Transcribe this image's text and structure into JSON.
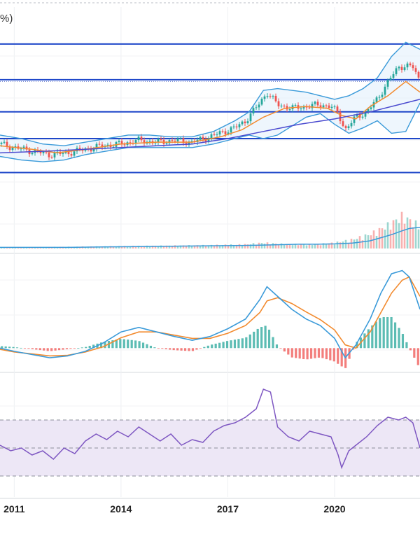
{
  "header": {
    "text": "%)"
  },
  "colors": {
    "up": "#26a69a",
    "down": "#ef5350",
    "hline": "#1f47c9",
    "bb": "#3a9ad9",
    "ma_fast": "#f28a2e",
    "ma_slow": "#4a4acf",
    "rsi": "#7e57c2",
    "rsi_band": "#ede7f6"
  },
  "chart_data": [
    {
      "type": "line",
      "panel": "price",
      "title": "",
      "x_tick_labels": [
        "2011",
        "2014",
        "2017",
        "2020"
      ],
      "x_ticks": [
        2011,
        2014,
        2017,
        2020
      ],
      "xlim": [
        2010.6,
        2022.4
      ],
      "ylim": [
        0,
        100
      ],
      "y_tick_labels": [],
      "horizontal_lines": [
        93,
        73,
        55,
        40,
        21
      ],
      "series": [
        {
          "kind": "price_close",
          "x": [
            2010.6,
            2011.0,
            2011.5,
            2012.0,
            2012.5,
            2013.0,
            2013.5,
            2014.0,
            2014.5,
            2015.0,
            2015.5,
            2016.0,
            2016.5,
            2016.9,
            2017.2,
            2017.5,
            2017.9,
            2018.1,
            2018.4,
            2018.8,
            2019.2,
            2019.6,
            2019.9,
            2020.1,
            2020.3,
            2020.6,
            2020.9,
            2021.2,
            2021.5,
            2021.8,
            2022.0,
            2022.2,
            2022.4
          ],
          "values": [
            37,
            35,
            33,
            31,
            32,
            34,
            36,
            37,
            39,
            38,
            39,
            38,
            41,
            44,
            46,
            50,
            60,
            66,
            59,
            57,
            58,
            59,
            58,
            54,
            45,
            52,
            55,
            62,
            72,
            80,
            81,
            80,
            72
          ]
        },
        {
          "kind": "bollinger_upper",
          "x": [
            2010.6,
            2011.2,
            2011.8,
            2012.4,
            2013.0,
            2013.6,
            2014.2,
            2014.8,
            2015.4,
            2016.0,
            2016.6,
            2017.2,
            2017.6,
            2018.0,
            2018.4,
            2018.8,
            2019.2,
            2019.6,
            2020.0,
            2020.4,
            2020.8,
            2021.2,
            2021.6,
            2022.0,
            2022.4
          ],
          "values": [
            42,
            40,
            37,
            36,
            38,
            40,
            42,
            42,
            41,
            41,
            44,
            50,
            55,
            67,
            68,
            67,
            66,
            64,
            62,
            64,
            68,
            74,
            86,
            94,
            90
          ]
        },
        {
          "kind": "bollinger_lower",
          "x": [
            2010.6,
            2011.2,
            2011.8,
            2012.4,
            2013.0,
            2013.6,
            2014.2,
            2014.8,
            2015.4,
            2016.0,
            2016.6,
            2017.2,
            2017.6,
            2018.0,
            2018.4,
            2018.8,
            2019.2,
            2019.6,
            2020.0,
            2020.4,
            2020.8,
            2021.2,
            2021.6,
            2022.0,
            2022.4
          ],
          "values": [
            30,
            28,
            27,
            28,
            31,
            33,
            35,
            35,
            35,
            35,
            37,
            40,
            42,
            40,
            42,
            47,
            52,
            54,
            48,
            43,
            46,
            50,
            43,
            44,
            60
          ]
        },
        {
          "kind": "ma_fast",
          "x": [
            2010.6,
            2011.5,
            2012.2,
            2013.0,
            2014.0,
            2015.0,
            2016.0,
            2016.8,
            2017.4,
            2018.0,
            2018.6,
            2019.2,
            2019.8,
            2020.2,
            2020.6,
            2021.0,
            2021.5,
            2022.0,
            2022.4
          ],
          "values": [
            36,
            34,
            32,
            34,
            37,
            38,
            38,
            41,
            45,
            52,
            57,
            58,
            57,
            53,
            51,
            58,
            64,
            72,
            66
          ]
        },
        {
          "kind": "ma_slow",
          "x": [
            2010.6,
            2012.0,
            2013.0,
            2014.0,
            2015.0,
            2016.0,
            2017.0,
            2018.0,
            2019.0,
            2020.0,
            2021.0,
            2022.0,
            2022.4
          ],
          "values": [
            32,
            33,
            34,
            35,
            36,
            37,
            40,
            44,
            48,
            51,
            55,
            60,
            62
          ]
        }
      ]
    },
    {
      "type": "bar",
      "panel": "volume",
      "title": "",
      "note": "volume bars with moving average",
      "x": [
        2010.6,
        2011.5,
        2012.5,
        2013.5,
        2014.5,
        2015.5,
        2016.5,
        2017.5,
        2018.0,
        2018.5,
        2019.0,
        2019.5,
        2020.0,
        2020.5,
        2021.0,
        2021.3,
        2021.6,
        2021.9,
        2022.1,
        2022.4
      ],
      "values": [
        3,
        3,
        4,
        5,
        6,
        7,
        8,
        10,
        14,
        11,
        10,
        10,
        14,
        22,
        35,
        48,
        62,
        80,
        70,
        55
      ],
      "ma": [
        3,
        3,
        3,
        4,
        5,
        6,
        7,
        8,
        9,
        10,
        11,
        11,
        12,
        14,
        20,
        28,
        36,
        46,
        52,
        55
      ],
      "ylim": [
        0,
        100
      ]
    },
    {
      "type": "line",
      "panel": "macd",
      "title": "",
      "x": [
        2010.6,
        2011.0,
        2011.5,
        2012.0,
        2012.5,
        2013.0,
        2013.5,
        2014.0,
        2014.5,
        2015.0,
        2015.5,
        2016.0,
        2016.5,
        2017.0,
        2017.5,
        2017.9,
        2018.1,
        2018.4,
        2018.8,
        2019.2,
        2019.6,
        2020.0,
        2020.3,
        2020.6,
        2021.0,
        2021.3,
        2021.6,
        2021.9,
        2022.1,
        2022.4
      ],
      "series": [
        {
          "kind": "macd",
          "values": [
            0,
            -0.5,
            -1,
            -1.5,
            -1.2,
            -0.5,
            0.8,
            2.5,
            3.2,
            2.5,
            1.8,
            1.2,
            1.8,
            3.0,
            4.5,
            7.5,
            9.5,
            8.0,
            6.0,
            4.5,
            3.5,
            1.5,
            -1.5,
            0.5,
            4.5,
            8.5,
            11.5,
            12.0,
            11.0,
            6.0
          ]
        },
        {
          "kind": "signal",
          "values": [
            -0.2,
            -0.6,
            -0.9,
            -1.2,
            -1.1,
            -0.6,
            0.2,
            1.6,
            2.5,
            2.5,
            2.0,
            1.5,
            1.5,
            2.3,
            3.5,
            5.5,
            7.3,
            7.8,
            6.9,
            5.6,
            4.4,
            2.8,
            0.5,
            0.0,
            2.5,
            5.5,
            8.5,
            10.5,
            11.0,
            8.0
          ]
        }
      ],
      "ylim": [
        -3,
        14
      ]
    },
    {
      "type": "line",
      "panel": "rsi",
      "title": "",
      "x": [
        2010.6,
        2010.9,
        2011.2,
        2011.5,
        2011.8,
        2012.1,
        2012.4,
        2012.7,
        2013.0,
        2013.3,
        2013.6,
        2013.9,
        2014.2,
        2014.5,
        2014.8,
        2015.1,
        2015.4,
        2015.7,
        2016.0,
        2016.3,
        2016.6,
        2016.9,
        2017.2,
        2017.5,
        2017.8,
        2018.0,
        2018.2,
        2018.4,
        2018.7,
        2019.0,
        2019.3,
        2019.6,
        2019.9,
        2020.1,
        2020.2,
        2020.4,
        2020.6,
        2020.9,
        2021.2,
        2021.5,
        2021.8,
        2022.0,
        2022.2,
        2022.4
      ],
      "values": [
        52,
        48,
        50,
        45,
        48,
        42,
        50,
        46,
        55,
        60,
        56,
        62,
        58,
        65,
        60,
        55,
        60,
        52,
        56,
        54,
        62,
        66,
        68,
        72,
        78,
        92,
        90,
        65,
        58,
        55,
        62,
        60,
        58,
        45,
        36,
        48,
        52,
        58,
        66,
        72,
        70,
        72,
        68,
        50
      ],
      "bands": [
        70,
        30
      ],
      "midline": 50,
      "ylim": [
        20,
        100
      ]
    }
  ]
}
